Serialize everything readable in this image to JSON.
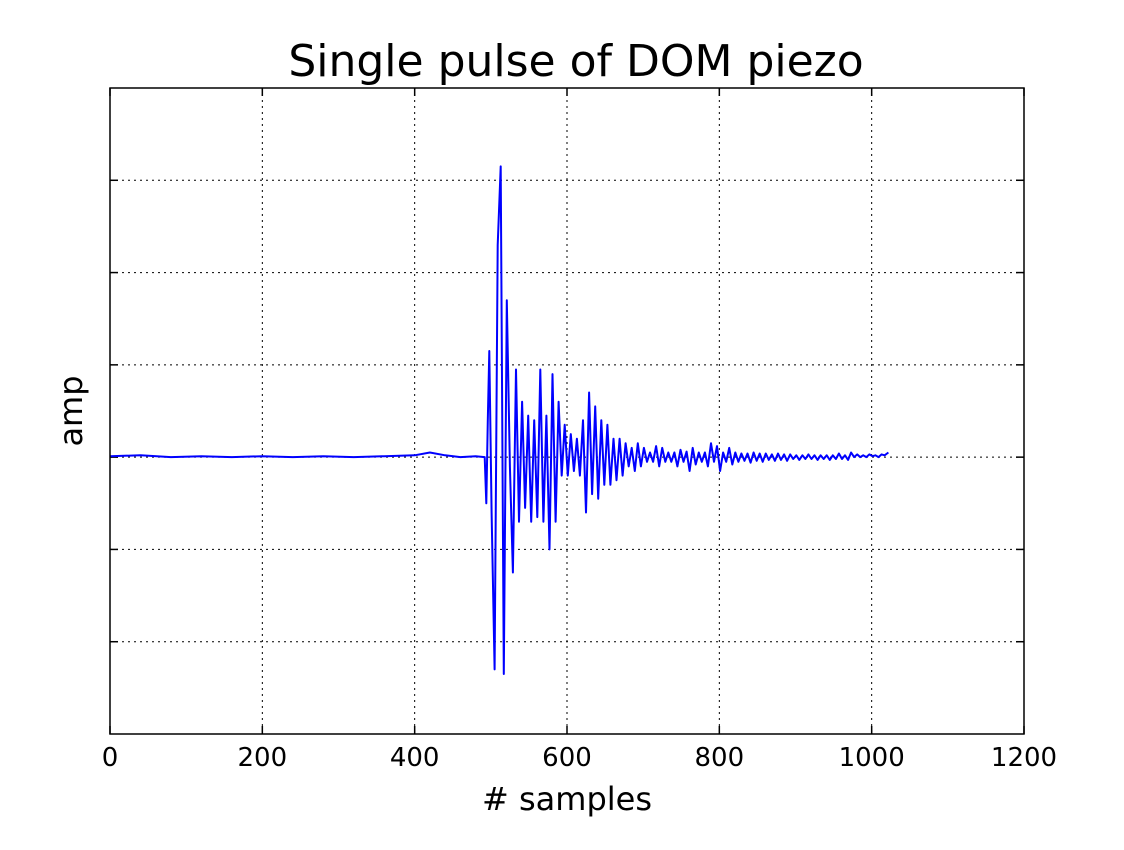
{
  "chart_data": {
    "type": "line",
    "title": "Single pulse of DOM piezo",
    "xlabel": "# samples",
    "ylabel": "amp",
    "xlim": [
      0,
      1200
    ],
    "ylim": [
      -3,
      4
    ],
    "x_ticks": [
      0,
      200,
      400,
      600,
      800,
      1000,
      1200
    ],
    "x_tick_labels": [
      "0",
      "200",
      "400",
      "600",
      "800",
      "1000",
      "1200"
    ],
    "y_ticks": [
      -2,
      -1,
      0,
      1,
      2,
      3
    ],
    "y_tick_labels": [],
    "grid": true,
    "color": "#0000ff",
    "series": [
      {
        "x": [
          0,
          40,
          80,
          120,
          160,
          200,
          240,
          280,
          320,
          360,
          400,
          420,
          440,
          460,
          480,
          492,
          494,
          496,
          498,
          501,
          505,
          509,
          513,
          517,
          521,
          525,
          529,
          533,
          537,
          541,
          545,
          549,
          553,
          557,
          561,
          565,
          569,
          573,
          577,
          581,
          585,
          589,
          593,
          597,
          601,
          605,
          609,
          613,
          617,
          621,
          625,
          629,
          633,
          637,
          641,
          645,
          649,
          653,
          657,
          661,
          665,
          669,
          673,
          677,
          681,
          685,
          689,
          693,
          697,
          701,
          705,
          709,
          713,
          717,
          721,
          725,
          729,
          733,
          737,
          741,
          745,
          749,
          753,
          757,
          761,
          765,
          769,
          773,
          777,
          781,
          785,
          789,
          793,
          797,
          801,
          805,
          809,
          813,
          817,
          821,
          825,
          829,
          833,
          837,
          841,
          845,
          849,
          853,
          857,
          861,
          865,
          869,
          873,
          877,
          881,
          885,
          889,
          893,
          897,
          901,
          905,
          909,
          913,
          917,
          921,
          925,
          929,
          933,
          937,
          941,
          945,
          949,
          953,
          957,
          961,
          965,
          969,
          973,
          977,
          981,
          985,
          989,
          993,
          997,
          1001,
          1005,
          1009,
          1013,
          1017,
          1022
        ],
        "y": [
          0.01,
          0.02,
          0.0,
          0.01,
          0.0,
          0.01,
          0.0,
          0.01,
          0.0,
          0.01,
          0.02,
          0.05,
          0.02,
          0.0,
          0.01,
          0.0,
          -0.5,
          0.4,
          1.15,
          -0.6,
          -2.3,
          2.3,
          3.15,
          -2.35,
          1.7,
          -0.1,
          -1.25,
          0.95,
          -0.7,
          0.6,
          -0.55,
          0.45,
          -0.7,
          0.4,
          -0.65,
          0.95,
          -0.7,
          0.45,
          -1.0,
          0.9,
          -0.7,
          0.6,
          -0.2,
          0.35,
          -0.2,
          0.25,
          -0.15,
          0.2,
          -0.2,
          0.4,
          -0.6,
          0.7,
          -0.4,
          0.55,
          -0.45,
          0.4,
          -0.3,
          0.35,
          -0.3,
          0.2,
          -0.25,
          0.2,
          -0.2,
          0.15,
          -0.1,
          0.1,
          -0.15,
          0.15,
          -0.1,
          0.1,
          -0.05,
          0.05,
          -0.05,
          0.12,
          -0.1,
          0.1,
          -0.05,
          0.05,
          -0.05,
          0.05,
          -0.1,
          0.08,
          -0.05,
          0.06,
          -0.15,
          0.1,
          -0.08,
          0.05,
          -0.05,
          0.05,
          -0.1,
          0.15,
          -0.05,
          0.12,
          -0.15,
          0.05,
          -0.05,
          0.1,
          -0.08,
          0.05,
          -0.05,
          0.04,
          -0.04,
          0.04,
          -0.06,
          0.05,
          -0.04,
          0.04,
          -0.05,
          0.04,
          -0.03,
          0.03,
          -0.04,
          0.04,
          -0.03,
          0.03,
          -0.04,
          0.03,
          -0.02,
          0.02,
          -0.03,
          0.02,
          -0.02,
          0.03,
          -0.02,
          0.02,
          -0.03,
          0.02,
          -0.02,
          0.02,
          -0.03,
          0.02,
          -0.02,
          0.04,
          -0.02,
          0.02,
          -0.03,
          0.05,
          0.0,
          0.03,
          0.0,
          0.02,
          0.0,
          0.03,
          0.01,
          0.02,
          0.0,
          0.03,
          0.02,
          0.05
        ]
      }
    ]
  }
}
